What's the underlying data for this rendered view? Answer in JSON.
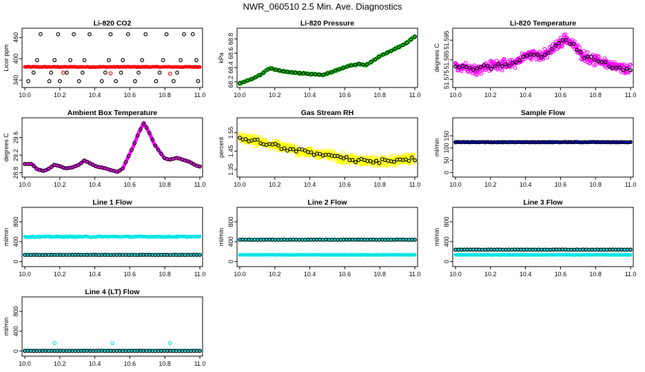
{
  "page": {
    "title": "NWR_060510  2.5 Min. Ave. Diagnostics"
  },
  "chart_data": [
    {
      "id": "co2",
      "type": "scatter",
      "title": "Li-820 CO2",
      "ylabel": "Licor ppm",
      "xlim": [
        10.0,
        11.0
      ],
      "ylim": [
        325,
        480
      ],
      "xticks": [
        10.0,
        10.2,
        10.4,
        10.6,
        10.8,
        11.0
      ],
      "xticklabels": [
        "10.0",
        "10.2",
        "10.4",
        "10.6",
        "10.8",
        "11.0"
      ],
      "yticks": [
        340,
        400,
        460
      ],
      "yticklabels": [
        "340",
        "400",
        "460"
      ],
      "series": [
        {
          "name": "co2-red",
          "color": "#ff0000",
          "marker": "filled",
          "gen": {
            "kind": "flat",
            "base": 377,
            "amp": 1,
            "n": 160
          }
        },
        {
          "name": "co2-red-outliers",
          "color": "#ff0000",
          "marker": "open",
          "points": [
            [
              10.22,
              361
            ],
            [
              10.49,
              359
            ],
            [
              10.83,
              358
            ]
          ]
        },
        {
          "name": "co2-black",
          "color": "#000000",
          "marker": "open",
          "points": [
            [
              10.02,
              337
            ],
            [
              10.05,
              361
            ],
            [
              10.07,
              396
            ],
            [
              10.09,
              469
            ],
            [
              10.14,
              337
            ],
            [
              10.15,
              361
            ],
            [
              10.17,
              396
            ],
            [
              10.19,
              469
            ],
            [
              10.2,
              337
            ],
            [
              10.24,
              361
            ],
            [
              10.26,
              396
            ],
            [
              10.28,
              469
            ],
            [
              10.31,
              337
            ],
            [
              10.33,
              361
            ],
            [
              10.34,
              396
            ],
            [
              10.37,
              469
            ],
            [
              10.44,
              337
            ],
            [
              10.46,
              361
            ],
            [
              10.48,
              396
            ],
            [
              10.49,
              469
            ],
            [
              10.52,
              337
            ],
            [
              10.55,
              361
            ],
            [
              10.56,
              396
            ],
            [
              10.59,
              469
            ],
            [
              10.63,
              337
            ],
            [
              10.65,
              361
            ],
            [
              10.67,
              396
            ],
            [
              10.69,
              469
            ],
            [
              10.75,
              337
            ],
            [
              10.77,
              361
            ],
            [
              10.79,
              396
            ],
            [
              10.81,
              469
            ],
            [
              10.85,
              337
            ],
            [
              10.87,
              361
            ],
            [
              10.89,
              396
            ],
            [
              10.91,
              469
            ],
            [
              10.96,
              469
            ],
            [
              10.98,
              396
            ],
            [
              10.99,
              337
            ]
          ]
        }
      ]
    },
    {
      "id": "pressure",
      "type": "scatter",
      "title": "Li-820 Pressure",
      "ylabel": "kPa",
      "xlim": [
        10.0,
        11.0
      ],
      "ylim": [
        68.15,
        68.92
      ],
      "xticks": [
        10.0,
        10.2,
        10.4,
        10.6,
        10.8,
        11.0
      ],
      "xticklabels": [
        "10.0",
        "10.2",
        "10.4",
        "10.6",
        "10.8",
        "11.0"
      ],
      "yticks": [
        68.2,
        68.4,
        68.6,
        68.8
      ],
      "yticklabels": [
        "68.2",
        "68.4",
        "68.6",
        "68.8"
      ],
      "series": [
        {
          "name": "pressure-green",
          "color": "#00cc00",
          "marker": "open",
          "gen": {
            "kind": "interp",
            "n": 220,
            "noise": 0.012
          }
        },
        {
          "name": "pressure-black",
          "color": "#000000",
          "marker": "open",
          "gen": {
            "kind": "interp",
            "n": 45,
            "noise": 0.004
          }
        }
      ],
      "curve": [
        [
          10.0,
          68.18
        ],
        [
          10.06,
          68.23
        ],
        [
          10.12,
          68.3
        ],
        [
          10.17,
          68.39
        ],
        [
          10.22,
          68.36
        ],
        [
          10.3,
          68.33
        ],
        [
          10.4,
          68.31
        ],
        [
          10.48,
          68.3
        ],
        [
          10.55,
          68.36
        ],
        [
          10.62,
          68.42
        ],
        [
          10.68,
          68.45
        ],
        [
          10.72,
          68.43
        ],
        [
          10.8,
          68.56
        ],
        [
          10.88,
          68.65
        ],
        [
          10.95,
          68.74
        ],
        [
          11.0,
          68.83
        ]
      ]
    },
    {
      "id": "temperature",
      "type": "scatter",
      "title": "Li-820 Temperature",
      "ylabel": "degrees C",
      "xlim": [
        10.0,
        11.0
      ],
      "ylim": [
        51.572,
        51.6
      ],
      "xticks": [
        10.0,
        10.2,
        10.4,
        10.6,
        10.8,
        11.0
      ],
      "xticklabels": [
        "10.0",
        "10.2",
        "10.4",
        "10.6",
        "10.8",
        "11.0"
      ],
      "yticks": [
        51.575,
        51.585,
        51.595
      ],
      "yticklabels": [
        "51.575",
        "51.585",
        "51.595"
      ],
      "series": [
        {
          "name": "temperature-magenta",
          "color": "#ff00ff",
          "marker": "open",
          "gen": {
            "kind": "interp",
            "n": 380,
            "noise": 0.0032
          }
        },
        {
          "name": "temperature-black",
          "color": "#000000",
          "marker": "open",
          "gen": {
            "kind": "interp",
            "n": 50,
            "noise": 0.0016
          }
        }
      ],
      "curve": [
        [
          10.0,
          51.581
        ],
        [
          10.05,
          51.582
        ],
        [
          10.1,
          51.58
        ],
        [
          10.15,
          51.581
        ],
        [
          10.2,
          51.582
        ],
        [
          10.25,
          51.583
        ],
        [
          10.3,
          51.582
        ],
        [
          10.35,
          51.584
        ],
        [
          10.4,
          51.587
        ],
        [
          10.45,
          51.588
        ],
        [
          10.5,
          51.587
        ],
        [
          10.55,
          51.59
        ],
        [
          10.6,
          51.594
        ],
        [
          10.63,
          51.596
        ],
        [
          10.67,
          51.593
        ],
        [
          10.72,
          51.588
        ],
        [
          10.78,
          51.585
        ],
        [
          10.85,
          51.584
        ],
        [
          10.92,
          51.581
        ],
        [
          11.0,
          51.58
        ]
      ]
    },
    {
      "id": "ambient",
      "type": "scatter",
      "title": "Ambient Box Temperature",
      "ylabel": "degrees C",
      "xlim": [
        10.0,
        11.0
      ],
      "ylim": [
        28.75,
        30.0
      ],
      "xticks": [
        10.0,
        10.2,
        10.4,
        10.6,
        10.8,
        11.0
      ],
      "xticklabels": [
        "10.0",
        "10.2",
        "10.4",
        "10.6",
        "10.8",
        "11.0"
      ],
      "yticks": [
        28.8,
        29.2,
        29.6
      ],
      "yticklabels": [
        "28.8",
        "29.2",
        "29.6"
      ],
      "series": [
        {
          "name": "ambient-magenta",
          "color": "#ff00ff",
          "marker": "filled",
          "gen": {
            "kind": "interp",
            "n": 420,
            "noise": 0.01
          }
        },
        {
          "name": "ambient-black",
          "color": "#000000",
          "marker": "open",
          "gen": {
            "kind": "interp",
            "n": 60,
            "noise": 0.004
          }
        }
      ],
      "curve": [
        [
          10.0,
          29.0
        ],
        [
          10.04,
          29.0
        ],
        [
          10.07,
          28.88
        ],
        [
          10.11,
          28.84
        ],
        [
          10.14,
          28.9
        ],
        [
          10.17,
          28.98
        ],
        [
          10.2,
          28.95
        ],
        [
          10.23,
          28.9
        ],
        [
          10.27,
          28.92
        ],
        [
          10.31,
          28.98
        ],
        [
          10.34,
          29.08
        ],
        [
          10.38,
          29.0
        ],
        [
          10.41,
          28.94
        ],
        [
          10.46,
          28.9
        ],
        [
          10.49,
          28.86
        ],
        [
          10.53,
          28.82
        ],
        [
          10.56,
          28.9
        ],
        [
          10.59,
          29.15
        ],
        [
          10.62,
          29.4
        ],
        [
          10.65,
          29.7
        ],
        [
          10.68,
          29.93
        ],
        [
          10.71,
          29.72
        ],
        [
          10.74,
          29.45
        ],
        [
          10.77,
          29.28
        ],
        [
          10.8,
          29.12
        ],
        [
          10.83,
          29.1
        ],
        [
          10.87,
          29.14
        ],
        [
          10.9,
          29.1
        ],
        [
          10.94,
          29.05
        ],
        [
          10.98,
          28.96
        ],
        [
          11.0,
          28.94
        ]
      ]
    },
    {
      "id": "rh",
      "type": "scatter",
      "title": "Gas Stream RH",
      "ylabel": "percent",
      "xlim": [
        10.0,
        11.0
      ],
      "ylim": [
        1.32,
        1.62
      ],
      "xticks": [
        10.0,
        10.2,
        10.4,
        10.6,
        10.8,
        11.0
      ],
      "xticklabels": [
        "10.0",
        "10.2",
        "10.4",
        "10.6",
        "10.8",
        "11.0"
      ],
      "yticks": [
        1.35,
        1.45,
        1.55
      ],
      "yticklabels": [
        "1.35",
        "1.45",
        "1.55"
      ],
      "series": [
        {
          "name": "rh-yellow",
          "color": "#ffff00",
          "marker": "open",
          "gen": {
            "kind": "interp",
            "n": 480,
            "noise": 0.032
          }
        },
        {
          "name": "rh-black",
          "color": "#000000",
          "marker": "open",
          "gen": {
            "kind": "interp",
            "n": 60,
            "noise": 0.016
          }
        }
      ],
      "curve": [
        [
          10.0,
          1.52
        ],
        [
          10.1,
          1.5
        ],
        [
          10.2,
          1.48
        ],
        [
          10.3,
          1.46
        ],
        [
          10.4,
          1.44
        ],
        [
          10.5,
          1.43
        ],
        [
          10.6,
          1.41
        ],
        [
          10.7,
          1.4
        ],
        [
          10.8,
          1.39
        ],
        [
          10.9,
          1.4
        ],
        [
          11.0,
          1.41
        ]
      ]
    },
    {
      "id": "sampleflow",
      "type": "scatter",
      "title": "Sample Flow",
      "ylabel": "ml/min",
      "xlim": [
        10.0,
        11.0
      ],
      "ylim": [
        -10,
        215
      ],
      "xticks": [
        10.0,
        10.2,
        10.4,
        10.6,
        10.8,
        11.0
      ],
      "xticklabels": [
        "10.0",
        "10.2",
        "10.4",
        "10.6",
        "10.8",
        "11.0"
      ],
      "yticks": [
        0,
        50,
        100,
        150
      ],
      "yticklabels": [
        "0",
        "50",
        "100",
        "150"
      ],
      "series": [
        {
          "name": "sampleflow-blue",
          "color": "#0000cc",
          "marker": "filled",
          "gen": {
            "kind": "flat",
            "base": 124,
            "amp": 1.5,
            "n": 220
          }
        },
        {
          "name": "sampleflow-black",
          "color": "#000000",
          "marker": "open",
          "gen": {
            "kind": "flat",
            "base": 124,
            "amp": 0.8,
            "n": 60
          }
        }
      ]
    },
    {
      "id": "line1",
      "type": "scatter",
      "title": "Line 1 Flow",
      "ylabel": "ml/min",
      "xlim": [
        10.0,
        11.0
      ],
      "ylim": [
        -60,
        1050
      ],
      "xticks": [
        10.0,
        10.2,
        10.4,
        10.6,
        10.8,
        11.0
      ],
      "xticklabels": [
        "10.0",
        "10.2",
        "10.4",
        "10.6",
        "10.8",
        "11.0"
      ],
      "yticks": [
        0,
        400,
        800
      ],
      "yticklabels": [
        "0",
        "400",
        "800"
      ],
      "series": [
        {
          "name": "line1-cyan-high",
          "color": "#00e5e5",
          "marker": "filled",
          "gen": {
            "kind": "flat",
            "base": 500,
            "amp": 10,
            "n": 200
          }
        },
        {
          "name": "line1-cyan-low",
          "color": "#00e5e5",
          "marker": "filled",
          "gen": {
            "kind": "flat",
            "base": 135,
            "amp": 4,
            "n": 200
          }
        },
        {
          "name": "line1-black",
          "color": "#000000",
          "marker": "open",
          "gen": {
            "kind": "flat",
            "base": 135,
            "amp": 2,
            "n": 60
          }
        }
      ]
    },
    {
      "id": "line2",
      "type": "scatter",
      "title": "Line 2 Flow",
      "ylabel": "ml/min",
      "xlim": [
        10.0,
        11.0
      ],
      "ylim": [
        -60,
        1050
      ],
      "xticks": [
        10.0,
        10.2,
        10.4,
        10.6,
        10.8,
        11.0
      ],
      "xticklabels": [
        "10.0",
        "10.2",
        "10.4",
        "10.6",
        "10.8",
        "11.0"
      ],
      "yticks": [
        0,
        400,
        800
      ],
      "yticklabels": [
        "0",
        "400",
        "800"
      ],
      "series": [
        {
          "name": "line2-cyan-high",
          "color": "#00e5e5",
          "marker": "filled",
          "gen": {
            "kind": "flat",
            "base": 440,
            "amp": 6,
            "n": 200
          }
        },
        {
          "name": "line2-cyan-low",
          "color": "#00e5e5",
          "marker": "filled",
          "gen": {
            "kind": "flat",
            "base": 135,
            "amp": 4,
            "n": 200
          }
        },
        {
          "name": "line2-black",
          "color": "#000000",
          "marker": "open",
          "gen": {
            "kind": "flat",
            "base": 440,
            "amp": 2,
            "n": 60
          }
        }
      ]
    },
    {
      "id": "line3",
      "type": "scatter",
      "title": "Line 3 Flow",
      "ylabel": "ml/min",
      "xlim": [
        10.0,
        11.0
      ],
      "ylim": [
        -60,
        1050
      ],
      "xticks": [
        10.0,
        10.2,
        10.4,
        10.6,
        10.8,
        11.0
      ],
      "xticklabels": [
        "10.0",
        "10.2",
        "10.4",
        "10.6",
        "10.8",
        "11.0"
      ],
      "yticks": [
        0,
        400,
        800
      ],
      "yticklabels": [
        "0",
        "400",
        "800"
      ],
      "series": [
        {
          "name": "line3-cyan-high",
          "color": "#00e5e5",
          "marker": "filled",
          "gen": {
            "kind": "flat",
            "base": 240,
            "amp": 5,
            "n": 200
          }
        },
        {
          "name": "line3-cyan-low",
          "color": "#00e5e5",
          "marker": "filled",
          "gen": {
            "kind": "flat",
            "base": 135,
            "amp": 4,
            "n": 200
          }
        },
        {
          "name": "line3-black",
          "color": "#000000",
          "marker": "open",
          "gen": {
            "kind": "flat",
            "base": 240,
            "amp": 2,
            "n": 60
          }
        }
      ]
    },
    {
      "id": "line4",
      "type": "scatter",
      "title": "Line 4 (LT) Flow",
      "ylabel": "ml/min",
      "xlim": [
        10.0,
        11.0
      ],
      "ylim": [
        -60,
        1050
      ],
      "xticks": [
        10.0,
        10.2,
        10.4,
        10.6,
        10.8,
        11.0
      ],
      "xticklabels": [
        "10.0",
        "10.2",
        "10.4",
        "10.6",
        "10.8",
        "11.0"
      ],
      "yticks": [
        0,
        400,
        800
      ],
      "yticklabels": [
        "0",
        "400",
        "800"
      ],
      "series": [
        {
          "name": "line4-cyan",
          "color": "#00e5e5",
          "marker": "filled",
          "gen": {
            "kind": "flat",
            "base": 8,
            "amp": 3,
            "n": 220
          }
        },
        {
          "name": "line4-cyan-spikes",
          "color": "#00e5e5",
          "marker": "open",
          "points": [
            [
              10.17,
              160
            ],
            [
              10.5,
              160
            ],
            [
              10.83,
              160
            ]
          ]
        },
        {
          "name": "line4-black",
          "color": "#000000",
          "marker": "open",
          "gen": {
            "kind": "flat",
            "base": 5,
            "amp": 1,
            "n": 60
          }
        }
      ]
    }
  ]
}
